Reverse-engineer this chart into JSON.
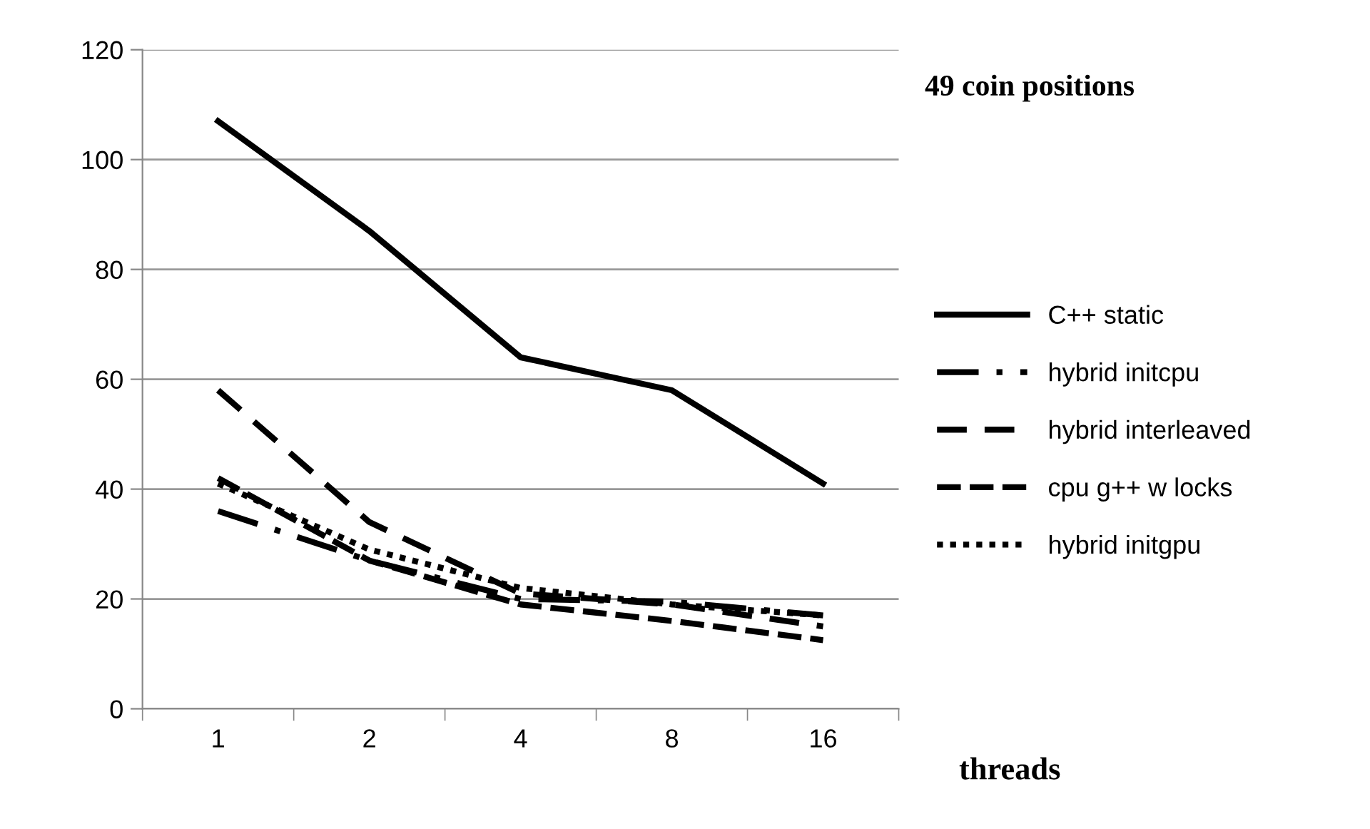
{
  "chart_data": {
    "type": "line",
    "title": "49 coin positions",
    "xlabel": "threads",
    "categories": [
      "1",
      "2",
      "4",
      "8",
      "16"
    ],
    "series": [
      {
        "name": "C++ static",
        "color": "#000000",
        "line_style": "solid",
        "values": [
          107,
          87,
          64,
          58,
          41
        ]
      },
      {
        "name": "hybrid initcpu",
        "color": "#000000",
        "line_style": "longdashdot",
        "values": [
          36,
          27,
          20,
          19.5,
          17
        ]
      },
      {
        "name": "hybrid interleaved",
        "color": "#000000",
        "line_style": "longdash",
        "values": [
          58,
          34,
          21,
          19,
          15
        ]
      },
      {
        "name": "cpu g++ w locks",
        "color": "#000000",
        "line_style": "dashed",
        "values": [
          42,
          27,
          19,
          16,
          12.5
        ]
      },
      {
        "name": "hybrid initgpu",
        "color": "#000000",
        "line_style": "dotted",
        "values": [
          41,
          29,
          22,
          19,
          17
        ]
      }
    ],
    "ylim": [
      0,
      120
    ],
    "yticks": [
      0,
      20,
      40,
      60,
      80,
      100,
      120
    ],
    "grid": "y",
    "legend": "right",
    "marker": "none"
  }
}
